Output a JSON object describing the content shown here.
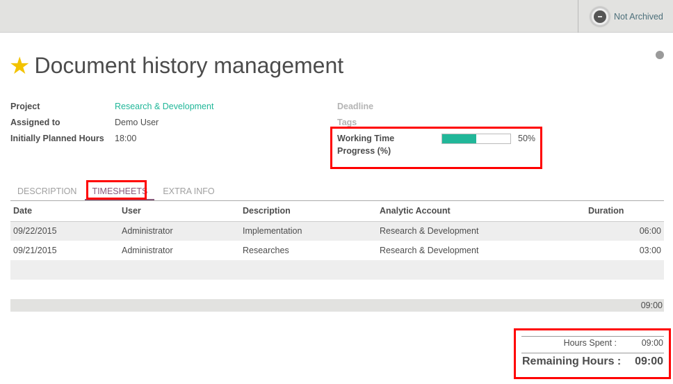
{
  "header": {
    "archive_label": "Not Archived"
  },
  "title": "Document history management",
  "fields": {
    "project_label": "Project",
    "project": "Research & Development",
    "assigned_label": "Assigned to",
    "assigned": "Demo User",
    "planned_label": "Initially Planned Hours",
    "planned": "18:00",
    "deadline_label": "Deadline",
    "tags_label": "Tags",
    "progress_label_1": "Working Time",
    "progress_label_2": "Progress (%)",
    "progress_text": "50%",
    "progress_value": 50
  },
  "tabs": [
    {
      "label": "DESCRIPTION"
    },
    {
      "label": "TIMESHEETS"
    },
    {
      "label": "EXTRA INFO"
    }
  ],
  "table": {
    "headers": [
      "Date",
      "User",
      "Description",
      "Analytic Account",
      "Duration"
    ],
    "rows": [
      [
        "09/22/2015",
        "Administrator",
        "Implementation",
        "Research & Development",
        "06:00"
      ],
      [
        "09/21/2015",
        "Administrator",
        "Researches",
        "Research & Development",
        "03:00"
      ]
    ],
    "total": "09:00"
  },
  "summary": {
    "spent_label": "Hours Spent :",
    "spent": "09:00",
    "remaining_label": "Remaining Hours :",
    "remaining": "09:00"
  },
  "colors": {
    "accent": "#21b799",
    "tab_active": "#875a7b",
    "star": "#f3c300",
    "annotation": "#ff0000"
  }
}
